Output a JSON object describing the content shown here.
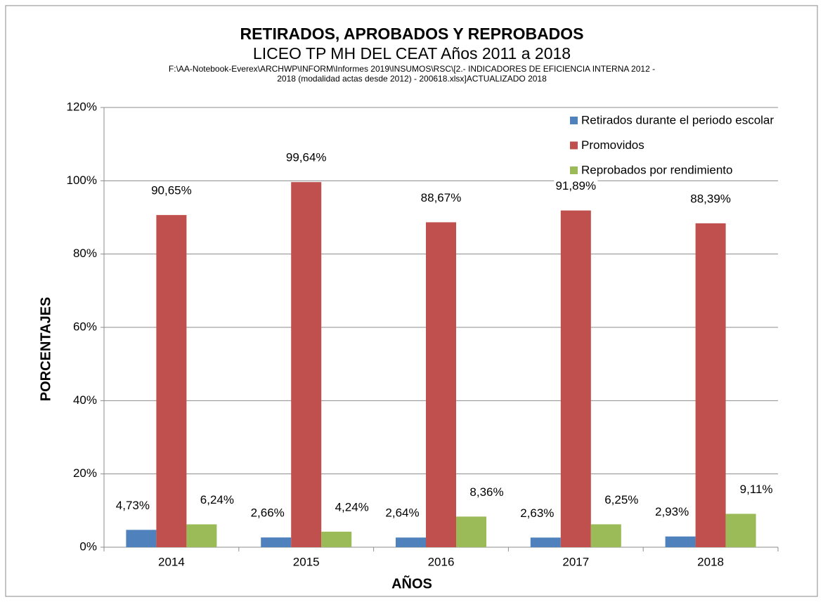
{
  "chart_data": {
    "type": "bar",
    "title": "RETIRADOS, APROBADOS Y REPROBADOS",
    "subtitle": "LICEO TP MH DEL CEAT   Años 2011 a 2018",
    "file_path": [
      "F:\\AA-Notebook-Everex\\ARCHWP\\INFORM\\Informes 2019\\INSUMOS\\RSC\\[2.- INDICADORES DE EFICIENCIA INTERNA 2012 -",
      "2018 (modalidad actas desde 2012) - 200618.xlsx]ACTUALIZADO 2018"
    ],
    "x_label": "AÑOS",
    "y_label": "PORCENTAJES",
    "categories": [
      "2014",
      "2015",
      "2016",
      "2017",
      "2018"
    ],
    "series": [
      {
        "name": "Retirados durante el periodo escolar",
        "color": "#4f81bd",
        "values": [
          4.73,
          2.66,
          2.64,
          2.63,
          2.93
        ],
        "value_labels": [
          "4,73%",
          "2,66%",
          "2,64%",
          "2,63%",
          "2,93%"
        ]
      },
      {
        "name": "Promovidos",
        "color": "#c0504d",
        "values": [
          90.65,
          99.64,
          88.67,
          91.89,
          88.39
        ],
        "value_labels": [
          "90,65%",
          "99,64%",
          "88,67%",
          "91,89%",
          "88,39%"
        ]
      },
      {
        "name": "Reprobados por rendimiento",
        "color": "#9bbb59",
        "values": [
          6.24,
          4.24,
          8.36,
          6.25,
          9.11
        ],
        "value_labels": [
          "6,24%",
          "4,24%",
          "8,36%",
          "6,25%",
          "9,11%"
        ]
      }
    ],
    "ylim": [
      0,
      120
    ],
    "yticks": [
      {
        "value": 0,
        "label": "0%"
      },
      {
        "value": 20,
        "label": "20%"
      },
      {
        "value": 40,
        "label": "40%"
      },
      {
        "value": 60,
        "label": "60%"
      },
      {
        "value": 80,
        "label": "80%"
      },
      {
        "value": 100,
        "label": "100%"
      },
      {
        "value": 120,
        "label": "120%"
      }
    ],
    "grid": true,
    "legend": "upper right"
  }
}
